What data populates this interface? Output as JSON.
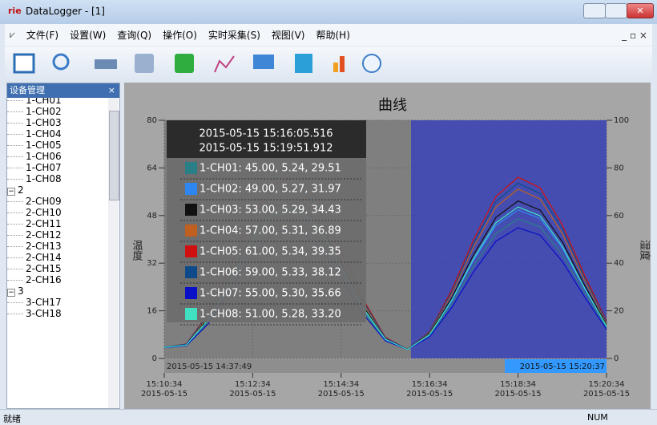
{
  "window": {
    "icon": "rie",
    "title": "DataLogger - [1]"
  },
  "menu": [
    "文件(F)",
    "设置(W)",
    "查询(Q)",
    "操作(O)",
    "实时采集(S)",
    "视图(V)",
    "帮助(H)"
  ],
  "panel": {
    "title": "设备管理",
    "tree": [
      {
        "label": "1",
        "children": [
          "1-CH01",
          "1-CH02",
          "1-CH03",
          "1-CH04",
          "1-CH05",
          "1-CH06",
          "1-CH07",
          "1-CH08"
        ]
      },
      {
        "label": "2",
        "children": [
          "2-CH09",
          "2-CH10",
          "2-CH11",
          "2-CH12",
          "2-CH13",
          "2-CH14",
          "2-CH15",
          "2-CH16"
        ]
      },
      {
        "label": "3",
        "children": [
          "3-CH17",
          "3-CH18"
        ]
      }
    ]
  },
  "chart_data": {
    "type": "line",
    "title": "曲线",
    "ylabel": "温度",
    "y2label": "湿度",
    "x": [
      "2015-05-15 15:10:34",
      "2015-05-15 15:11:04",
      "2015-05-15 15:11:34",
      "2015-05-15 15:12:04",
      "2015-05-15 15:12:34",
      "2015-05-15 15:13:04",
      "2015-05-15 15:13:34",
      "2015-05-15 15:14:04",
      "2015-05-15 15:14:34",
      "2015-05-15 15:15:04",
      "2015-05-15 15:15:34",
      "2015-05-15 15:16:04",
      "2015-05-15 15:16:34",
      "2015-05-15 15:17:04",
      "2015-05-15 15:17:34",
      "2015-05-15 15:18:04",
      "2015-05-15 15:18:34",
      "2015-05-15 15:19:04",
      "2015-05-15 15:19:34",
      "2015-05-15 15:20:04",
      "2015-05-15 15:20:34"
    ],
    "xlim": [
      "2015-05-15 15:10:34",
      "2015-05-15 15:20:34"
    ],
    "xticks": [
      {
        "value": "2015-05-15 15:10:34",
        "label": [
          "15:10:34",
          "2015-05-15"
        ]
      },
      {
        "value": "2015-05-15 15:12:34",
        "label": [
          "15:12:34",
          "2015-05-15"
        ]
      },
      {
        "value": "2015-05-15 15:14:34",
        "label": [
          "15:14:34",
          "2015-05-15"
        ]
      },
      {
        "value": "2015-05-15 15:16:34",
        "label": [
          "15:16:34",
          "2015-05-15"
        ]
      },
      {
        "value": "2015-05-15 15:18:34",
        "label": [
          "15:18:34",
          "2015-05-15"
        ]
      },
      {
        "value": "2015-05-15 15:20:34",
        "label": [
          "15:20:34",
          "2015-05-15"
        ]
      }
    ],
    "ylim": [
      0,
      80
    ],
    "yticks": [
      0,
      16,
      32,
      48,
      64,
      80
    ],
    "y2lim": [
      0,
      100
    ],
    "y2ticks": [
      0,
      20,
      40,
      60,
      80,
      100
    ],
    "grid": true,
    "series": [
      {
        "name": "1-CH01",
        "color": "#2a7f86",
        "values": [
          3.6,
          4.4,
          12.3,
          24.7,
          37.1,
          45.4,
          46.5,
          40.3,
          28.6,
          15.8,
          6.1,
          3.0,
          7.6,
          18.2,
          31.2,
          42.0,
          46.9,
          44.2,
          34.8,
          22.1,
          10.3
        ]
      },
      {
        "name": "1-CH02",
        "color": "#2e86f0",
        "values": [
          3.7,
          4.5,
          13.0,
          26.2,
          39.5,
          48.3,
          49.5,
          42.9,
          30.4,
          16.6,
          6.3,
          3.0,
          7.9,
          19.2,
          33.1,
          44.7,
          49.9,
          47.0,
          37.0,
          23.4,
          10.8
        ]
      },
      {
        "name": "1-CH03",
        "color": "#111111",
        "values": [
          3.7,
          4.6,
          13.6,
          27.7,
          41.8,
          51.2,
          52.5,
          45.4,
          32.1,
          17.5,
          6.5,
          3.1,
          8.3,
          20.3,
          35.0,
          47.4,
          52.9,
          49.8,
          39.2,
          24.7,
          11.3
        ]
      },
      {
        "name": "1-CH04",
        "color": "#c06020",
        "values": [
          3.8,
          4.7,
          14.4,
          29.6,
          44.9,
          55.0,
          56.4,
          48.8,
          34.4,
          18.7,
          6.8,
          3.1,
          8.7,
          21.6,
          37.6,
          50.9,
          56.9,
          53.5,
          42.0,
          26.4,
          11.9
        ]
      },
      {
        "name": "1-CH05",
        "color": "#d01010",
        "values": [
          3.8,
          4.9,
          15.3,
          31.6,
          48.0,
          58.9,
          60.4,
          52.2,
          36.8,
          19.8,
          7.1,
          3.1,
          9.1,
          23.0,
          40.1,
          54.4,
          60.9,
          57.3,
          44.9,
          28.1,
          12.6
        ]
      },
      {
        "name": "1-CH06",
        "color": "#0e4a8a",
        "values": [
          3.8,
          4.8,
          14.9,
          30.6,
          46.5,
          56.9,
          58.4,
          50.5,
          35.6,
          19.2,
          6.9,
          3.1,
          8.9,
          22.3,
          38.8,
          52.7,
          58.9,
          55.4,
          43.5,
          27.2,
          12.2
        ]
      },
      {
        "name": "1-CH07",
        "color": "#0a10c8",
        "values": [
          3.6,
          4.3,
          11.7,
          23.2,
          34.8,
          42.5,
          43.5,
          37.8,
          26.9,
          14.9,
          5.9,
          3.0,
          7.3,
          17.1,
          29.2,
          39.4,
          43.9,
          41.4,
          32.6,
          20.8,
          9.8
        ]
      },
      {
        "name": "1-CH08",
        "color": "#40e0c0",
        "values": [
          3.7,
          4.5,
          13.2,
          26.7,
          40.2,
          49.2,
          50.5,
          43.7,
          30.9,
          16.9,
          6.4,
          3.0,
          8.0,
          19.6,
          33.7,
          45.6,
          50.9,
          47.9,
          37.7,
          23.8,
          10.9
        ]
      }
    ],
    "tooltip": {
      "times": [
        "2015-05-15 15:16:05.516",
        "2015-05-15 15:19:51.912"
      ],
      "entries": [
        "1-CH01: 45.00, 5.24, 29.51",
        "1-CH02: 49.00, 5.27, 31.97",
        "1-CH03: 53.00, 5.29, 34.43",
        "1-CH04: 57.00, 5.31, 36.89",
        "1-CH05: 61.00, 5.34, 39.35",
        "1-CH06: 59.00, 5.33, 38.12",
        "1-CH07: 55.00, 5.30, 35.66",
        "1-CH08: 51.00, 5.28, 33.20"
      ]
    },
    "range": [
      "2015-05-15 14:37:49",
      "2015-05-15 15:20:37"
    ]
  },
  "status": {
    "text": "就绪",
    "num": "NUM"
  }
}
